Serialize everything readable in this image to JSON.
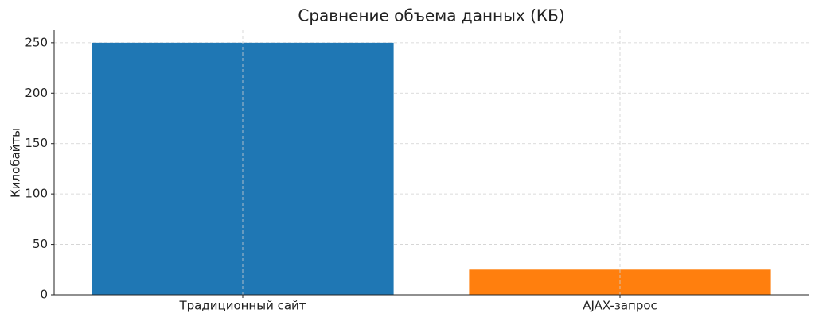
{
  "chart_data": {
    "type": "bar",
    "title": "Сравнение объема данных (КБ)",
    "y_label": "Килобайты",
    "categories": [
      "Традиционный сайт",
      "AJAX-запрос"
    ],
    "values": [
      250,
      25
    ],
    "colors": [
      "#1f77b4",
      "#ff7f0e"
    ],
    "ylim": [
      0,
      262.5
    ],
    "yticks": [
      0,
      50,
      100,
      150,
      200,
      250
    ],
    "grid": true
  }
}
